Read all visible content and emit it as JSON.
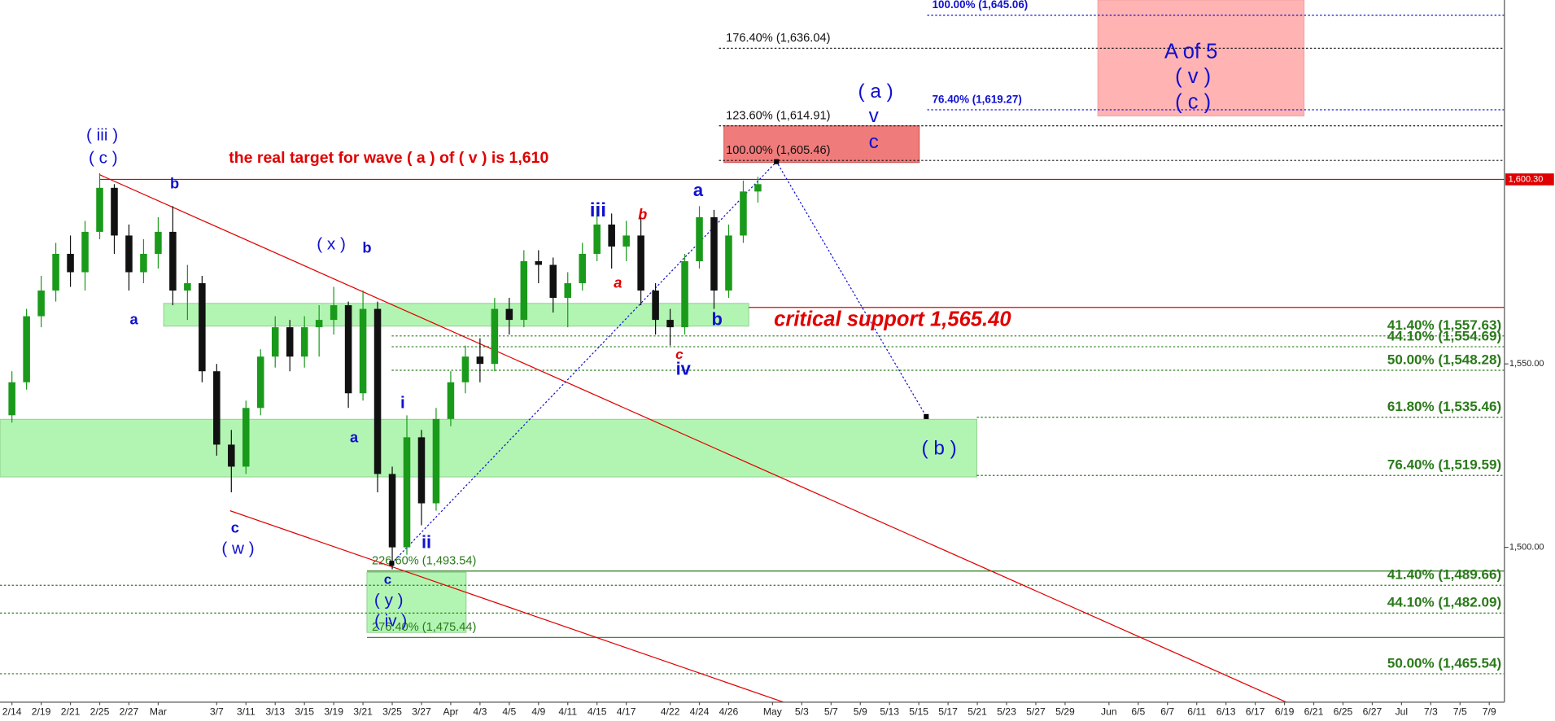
{
  "chart_data": {
    "type": "candlestick",
    "categories": [
      "2/14",
      null,
      "2/19",
      null,
      "2/21",
      null,
      "2/25",
      null,
      "2/27",
      null,
      "Mar",
      null,
      null,
      null,
      "3/7",
      null,
      "3/11",
      null,
      "3/13",
      null,
      "3/15",
      null,
      "3/19",
      null,
      "3/21",
      null,
      "3/25",
      null,
      "3/27",
      null,
      "Apr",
      null,
      "4/3",
      null,
      "4/5",
      null,
      "4/9",
      null,
      "4/11",
      null,
      "4/15",
      null,
      "4/17",
      null,
      null,
      "4/22",
      null,
      "4/24",
      null,
      "4/26",
      null,
      null,
      "May",
      null,
      "5/3",
      null,
      "5/7",
      null,
      "5/9",
      null,
      "5/13",
      null,
      "5/15",
      null,
      "5/17",
      null,
      "5/21",
      null,
      "5/23",
      null,
      "5/27",
      null,
      "5/29",
      null,
      null,
      "Jun",
      null,
      "6/5",
      null,
      "6/7",
      null,
      "6/11",
      null,
      "6/13",
      null,
      "6/17",
      null,
      "6/19",
      null,
      "6/21",
      null,
      "6/25",
      null,
      "6/27",
      null,
      "Jul",
      null,
      "7/3",
      null,
      "7/5",
      null,
      "7/9"
    ],
    "open": [
      1536,
      1545,
      1563,
      1570,
      1580,
      1575,
      1586,
      1598,
      1585,
      1575,
      1580,
      1586,
      1570,
      1572,
      1548,
      1528,
      1522,
      1538,
      1552,
      1560,
      1552,
      1560,
      1562,
      1566,
      1542,
      1565,
      1520,
      1500,
      1530,
      1512,
      1535,
      1545,
      1552,
      1550,
      1565,
      1562,
      1578,
      1577,
      1568,
      1572,
      1580,
      1588,
      1582,
      1585,
      1570,
      1562,
      1560,
      1578,
      1590,
      1570,
      1585,
      1597,
      null,
      null,
      null,
      null,
      null,
      null,
      null,
      null,
      null,
      null,
      null,
      null,
      null,
      null,
      null,
      null,
      null,
      null,
      null,
      null,
      null,
      null,
      null,
      null,
      null,
      null,
      null,
      null,
      null,
      null,
      null,
      null,
      null,
      null,
      null,
      null,
      null,
      null,
      null,
      null,
      null,
      null,
      null,
      null,
      null,
      null,
      null,
      null,
      null,
      null
    ],
    "high": [
      1548,
      1565,
      1574,
      1583,
      1585,
      1589,
      1602,
      1599,
      1588,
      1584,
      1590,
      1593,
      1577,
      1574,
      1550,
      1532,
      1540,
      1554,
      1563,
      1562,
      1563,
      1566,
      1571,
      1567,
      1570,
      1567,
      1522,
      1536,
      1532,
      1538,
      1548,
      1555,
      1557,
      1568,
      1568,
      1581,
      1581,
      1579,
      1575,
      1583,
      1593,
      1591,
      1589,
      1590,
      1572,
      1565,
      1580,
      1593,
      1592,
      1588,
      1600,
      1601,
      null,
      null,
      null,
      null,
      null,
      null,
      null,
      null,
      null,
      null,
      null,
      null,
      null,
      null,
      null,
      null,
      null,
      null,
      null,
      null,
      null,
      null,
      null,
      null,
      null,
      null,
      null,
      null,
      null,
      null,
      null,
      null,
      null,
      null,
      null,
      null,
      null,
      null,
      null,
      null,
      null,
      null,
      null,
      null,
      null,
      null,
      null,
      null,
      null,
      null
    ],
    "low": [
      1534,
      1543,
      1560,
      1567,
      1571,
      1570,
      1584,
      1580,
      1570,
      1572,
      1576,
      1566,
      1562,
      1545,
      1525,
      1515,
      1520,
      1536,
      1549,
      1548,
      1549,
      1552,
      1558,
      1538,
      1540,
      1515,
      1494,
      1498,
      1506,
      1510,
      1533,
      1542,
      1545,
      1548,
      1558,
      1560,
      1572,
      1564,
      1560,
      1570,
      1578,
      1576,
      1578,
      1566,
      1558,
      1555,
      1558,
      1576,
      1565,
      1568,
      1583,
      1594,
      null,
      null,
      null,
      null,
      null,
      null,
      null,
      null,
      null,
      null,
      null,
      null,
      null,
      null,
      null,
      null,
      null,
      null,
      null,
      null,
      null,
      null,
      null,
      null,
      null,
      null,
      null,
      null,
      null,
      null,
      null,
      null,
      null,
      null,
      null,
      null,
      null,
      null,
      null,
      null,
      null,
      null,
      null,
      null,
      null,
      null,
      null,
      null,
      null,
      null
    ],
    "close": [
      1545,
      1563,
      1570,
      1580,
      1575,
      1586,
      1598,
      1585,
      1575,
      1580,
      1586,
      1570,
      1572,
      1548,
      1528,
      1522,
      1538,
      1552,
      1560,
      1552,
      1560,
      1562,
      1566,
      1542,
      1565,
      1520,
      1500,
      1530,
      1512,
      1535,
      1545,
      1552,
      1550,
      1565,
      1562,
      1578,
      1577,
      1568,
      1572,
      1580,
      1588,
      1582,
      1585,
      1570,
      1562,
      1560,
      1578,
      1590,
      1570,
      1585,
      1597,
      1599,
      null,
      null,
      null,
      null,
      null,
      null,
      null,
      null,
      null,
      null,
      null,
      null,
      null,
      null,
      null,
      null,
      null,
      null,
      null,
      null,
      null,
      null,
      null,
      null,
      null,
      null,
      null,
      null,
      null,
      null,
      null,
      null,
      null,
      null,
      null,
      null,
      null,
      null,
      null,
      null,
      null,
      null,
      null,
      null,
      null,
      null,
      null,
      null,
      null,
      null
    ],
    "up_color": "#1a9a1a",
    "down_color": "#111111",
    "ylim": [
      1457.8,
      1649.2
    ],
    "yticks": [
      {
        "value": 1500,
        "label": "1,500.00"
      },
      {
        "value": 1550,
        "label": "1,550.00"
      }
    ],
    "last_price": {
      "value": 1600.3,
      "label": "1,600.30",
      "color": "#e00000"
    },
    "support_line": {
      "value": 1565.4,
      "color": "#e00000"
    },
    "zones": [
      {
        "low": 1560.3,
        "high": 1566.5,
        "color": "#b2f5b2"
      },
      {
        "low": 1519.2,
        "high": 1534.9,
        "color": "#b2f5b2"
      },
      {
        "low": 1476.8,
        "high": 1493.2,
        "color": "#b2f5b2"
      },
      {
        "low": 1604.9,
        "high": 1614.9,
        "color": "#f07b7b"
      },
      {
        "low": 1617.6,
        "high": 1649.2,
        "color": "#ffb3b3"
      }
    ],
    "fib_levels": [
      {
        "value": 1636.04,
        "label": "176.40% (1,636.04)",
        "color": "#111111"
      },
      {
        "value": 1614.91,
        "label": "123.60% (1,614.91)",
        "color": "#111111"
      },
      {
        "value": 1605.46,
        "label": "100.00% (1,605.46)",
        "color": "#111111"
      },
      {
        "value": 1645.06,
        "label": "100.00% (1,645.06)",
        "color": "#1010d0"
      },
      {
        "value": 1619.27,
        "label": "76.40% (1,619.27)",
        "color": "#1010d0"
      },
      {
        "value": 1557.63,
        "label": "41.40% (1,557.63)",
        "color": "#2a7a1a"
      },
      {
        "value": 1554.69,
        "label": "44.10% (1,554.69)",
        "color": "#2a7a1a"
      },
      {
        "value": 1548.28,
        "label": "50.00% (1,548.28)",
        "color": "#2a7a1a"
      },
      {
        "value": 1535.46,
        "label": "61.80% (1,535.46)",
        "color": "#2a7a1a"
      },
      {
        "value": 1519.59,
        "label": "76.40% (1,519.59)",
        "color": "#2a7a1a"
      },
      {
        "value": 1489.66,
        "label": "41.40% (1,489.66)",
        "color": "#2a7a1a"
      },
      {
        "value": 1482.09,
        "label": "44.10% (1,482.09)",
        "color": "#2a7a1a"
      },
      {
        "value": 1465.54,
        "label": "50.00% (1,465.54)",
        "color": "#2a7a1a"
      },
      {
        "value": 1493.54,
        "label": "226.60% (1,493.54)",
        "color": "#2a7a1a"
      },
      {
        "value": 1475.44,
        "label": "276.40% (1,475.44)",
        "color": "#2a7a1a"
      }
    ],
    "annotations": [
      {
        "text": "( iii )",
        "color": "#1010d0"
      },
      {
        "text": "( c )",
        "color": "#1010d0"
      },
      {
        "text": "the real target for wave ( a ) of ( v ) is 1,610",
        "color": "#e00000"
      },
      {
        "text": "b",
        "color": "#1010d0"
      },
      {
        "text": "( x )",
        "color": "#1010d0"
      },
      {
        "text": "b",
        "color": "#1010d0"
      },
      {
        "text": "a",
        "color": "#1010d0"
      },
      {
        "text": "a",
        "color": "#1010d0"
      },
      {
        "text": "c",
        "color": "#1010d0"
      },
      {
        "text": "( w )",
        "color": "#1010d0"
      },
      {
        "text": "i",
        "color": "#1010d0"
      },
      {
        "text": "ii",
        "color": "#1010d0"
      },
      {
        "text": "c",
        "color": "#1010d0"
      },
      {
        "text": "( y )",
        "color": "#1010d0"
      },
      {
        "text": "( iv )",
        "color": "#1010d0"
      },
      {
        "text": "iii",
        "color": "#1010d0"
      },
      {
        "text": "b",
        "color": "#e00000"
      },
      {
        "text": "a",
        "color": "#e00000"
      },
      {
        "text": "a",
        "color": "#1010d0"
      },
      {
        "text": "b",
        "color": "#1010d0"
      },
      {
        "text": "c",
        "color": "#e00000"
      },
      {
        "text": "iv",
        "color": "#1010d0"
      },
      {
        "text": "critical support 1,565.40",
        "color": "#e00000"
      },
      {
        "text": "( a )",
        "color": "#1010d0"
      },
      {
        "text": "v",
        "color": "#1010d0"
      },
      {
        "text": "c",
        "color": "#1010d0"
      },
      {
        "text": "A of 5",
        "color": "#1010d0"
      },
      {
        "text": "( v )",
        "color": "#1010d0"
      },
      {
        "text": "( c )",
        "color": "#1010d0"
      },
      {
        "text": "( b )",
        "color": "#1010d0"
      }
    ]
  }
}
